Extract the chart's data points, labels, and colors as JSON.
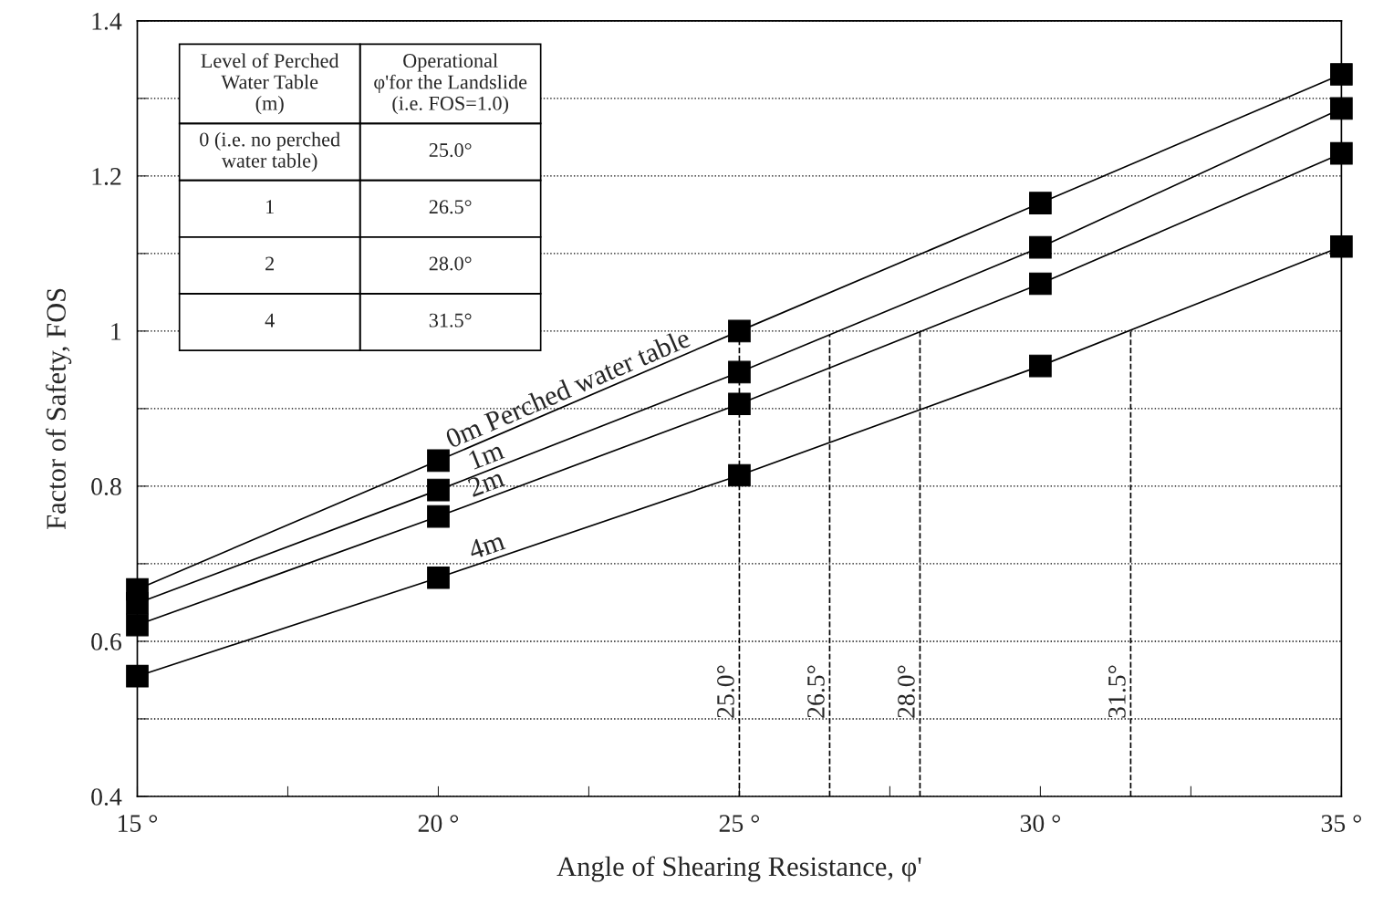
{
  "chart_data": {
    "type": "line",
    "xlabel": "Angle of Shearing Resistance, φ'",
    "ylabel": "Factor of Safety, FOS",
    "x": [
      15,
      20,
      25,
      30,
      35
    ],
    "series": [
      {
        "name": "0m Perched water table",
        "color": "#000000",
        "values": [
          0.667,
          0.833,
          1.0,
          1.165,
          1.331
        ]
      },
      {
        "name": "1m",
        "color": "#000000",
        "values": [
          0.649,
          0.795,
          0.947,
          1.108,
          1.287
        ]
      },
      {
        "name": "2m",
        "color": "#000000",
        "values": [
          0.621,
          0.761,
          0.906,
          1.061,
          1.229
        ]
      },
      {
        "name": "4m",
        "color": "#000000",
        "values": [
          0.555,
          0.682,
          0.814,
          0.955,
          1.109
        ]
      }
    ],
    "xlim": [
      15,
      35
    ],
    "xticks": [
      {
        "value": 15,
        "label": "15 °"
      },
      {
        "value": 17.5,
        "label": null
      },
      {
        "value": 20,
        "label": "20 °"
      },
      {
        "value": 22.5,
        "label": null
      },
      {
        "value": 25,
        "label": "25 °"
      },
      {
        "value": 27.5,
        "label": null
      },
      {
        "value": 30,
        "label": "30 °"
      },
      {
        "value": 32.5,
        "label": null
      },
      {
        "value": 35,
        "label": "35 °"
      }
    ],
    "ylim": [
      0.4,
      1.4
    ],
    "yticks": [
      0.4,
      {
        "value": 0.5,
        "label": null
      },
      0.6,
      {
        "value": 0.7,
        "label": null
      },
      0.8,
      {
        "value": 0.9,
        "label": null
      },
      1,
      {
        "value": 1.1,
        "label": null
      },
      1.2,
      {
        "value": 1.3,
        "label": null
      },
      1.4
    ],
    "grid": "y",
    "legend": false,
    "marker": "square",
    "line_style": "solid",
    "ref_lines": [
      {
        "axis": "x",
        "value": 25.0,
        "label": "25.0°",
        "line_style": "dashed"
      },
      {
        "axis": "x",
        "value": 26.5,
        "label": "26.5°",
        "line_style": "dashed"
      },
      {
        "axis": "x",
        "value": 28.0,
        "label": "28.0°",
        "line_style": "dashed"
      },
      {
        "axis": "x",
        "value": 31.5,
        "label": "31.5°",
        "line_style": "dashed"
      }
    ],
    "annotations": [
      "Level of Perched\nWater Table\n(m)",
      "Operational\nφ'for the Landslide\n(i.e. FOS=1.0)",
      "0 (i.e. no perched\nwater table)",
      "25.0°",
      "1",
      "26.5°",
      "2",
      "28.0°",
      "4",
      "31.5°"
    ]
  }
}
